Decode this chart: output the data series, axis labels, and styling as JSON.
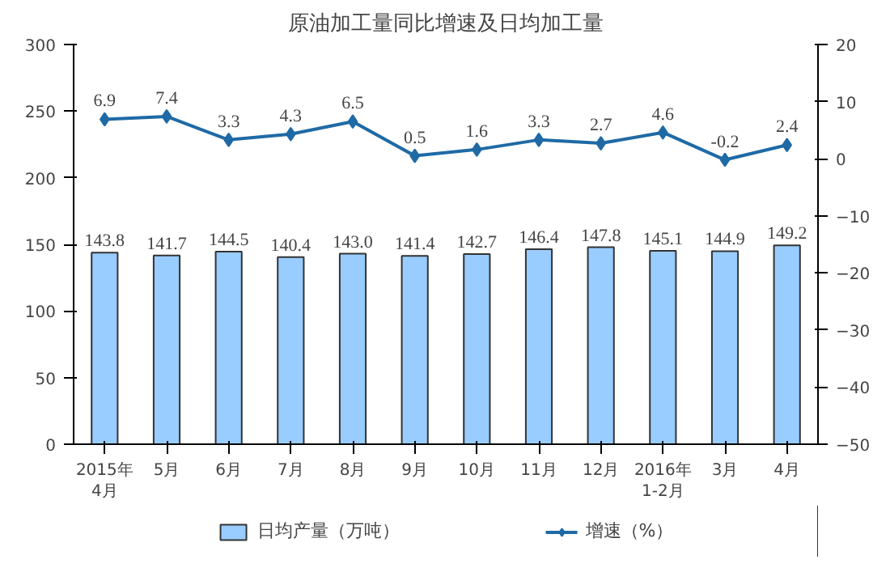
{
  "chart_data": {
    "type": "bar",
    "title": "原油加工量同比增速及日均加工量",
    "categories": [
      "2015年\n4月",
      "5月",
      "6月",
      "7月",
      "8月",
      "9月",
      "10月",
      "11月",
      "12月",
      "2016年\n1-2月",
      "3月",
      "4月"
    ],
    "series": [
      {
        "name": "日均产量（万吨）",
        "color": "#99ccff",
        "values": [
          143.8,
          141.7,
          144.5,
          140.4,
          143.0,
          141.4,
          142.7,
          146.4,
          147.8,
          145.1,
          144.9,
          149.2
        ],
        "value_labels": [
          "143.8",
          "141.7",
          "144.5",
          "140.4",
          "143.0",
          "141.4",
          "142.7",
          "146.4",
          "147.8",
          "145.1",
          "144.9",
          "149.2"
        ]
      },
      {
        "name": "增速（%）",
        "type": "line",
        "axis": "y2",
        "color": "#1f6aa5",
        "marker": "diamond",
        "values": [
          6.9,
          7.4,
          3.3,
          4.3,
          6.5,
          0.5,
          1.6,
          3.3,
          2.7,
          4.6,
          -0.2,
          2.4
        ]
      }
    ],
    "ylim": [
      0,
      300
    ],
    "yticks": [
      0,
      50,
      100,
      150,
      200,
      250,
      300
    ],
    "y2lim": [
      -50,
      20
    ],
    "y2ticks": [
      -50,
      -40,
      -30,
      -20,
      -10,
      0,
      10,
      20
    ],
    "data_labels": true,
    "grid": false,
    "legend": "bottom"
  }
}
